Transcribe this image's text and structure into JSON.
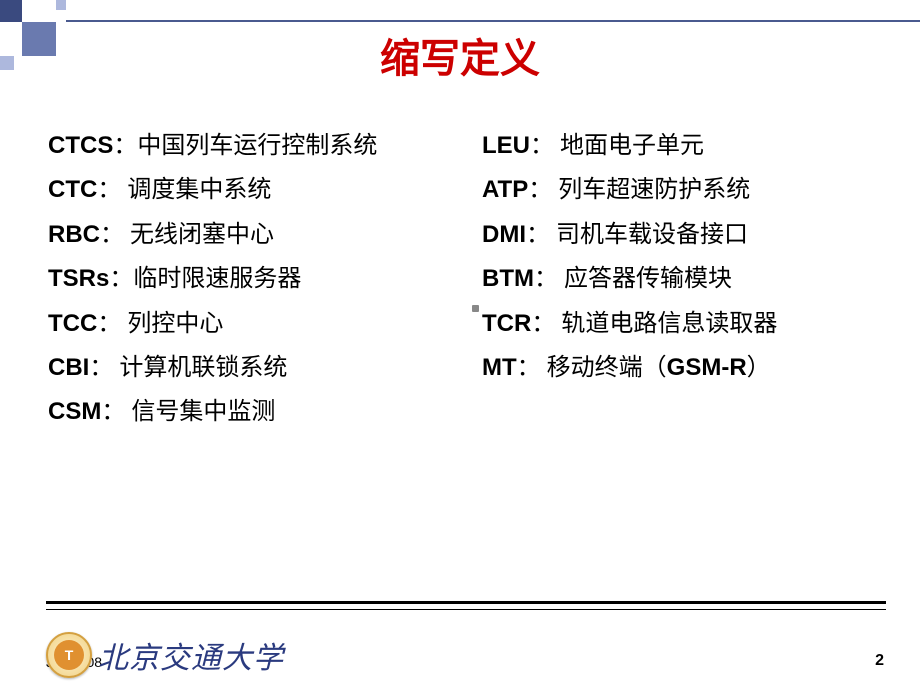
{
  "title": {
    "text": "缩写定义",
    "color": "#cc0000"
  },
  "leftColumn": [
    {
      "abbr": "CTCS",
      "sep": "：",
      "def": "中国列车运行控制系统"
    },
    {
      "abbr": "CTC",
      "sep": "：  ",
      "def": "调度集中系统"
    },
    {
      "abbr": "RBC",
      "sep": "：  ",
      "def": "无线闭塞中心"
    },
    {
      "abbr": "TSRs",
      "sep": "：",
      "def": "临时限速服务器"
    },
    {
      "abbr": "TCC",
      "sep": "：  ",
      "def": "列控中心"
    },
    {
      "abbr": "CBI",
      "sep": "：  ",
      "def": "计算机联锁系统"
    },
    {
      "abbr": "CSM",
      "sep": "：  ",
      "def": "信号集中监测"
    }
  ],
  "rightColumn": [
    {
      "abbr": "LEU",
      "sep": "：  ",
      "def": "地面电子单元"
    },
    {
      "abbr": "ATP",
      "sep": "：  ",
      "def": "列车超速防护系统"
    },
    {
      "abbr": "DMI",
      "sep": "：  ",
      "def": "司机车载设备接口"
    },
    {
      "abbr": "BTM",
      "sep": "：  ",
      "def": "应答器传输模块"
    },
    {
      "abbr": "TCR",
      "sep": "：  ",
      "def": "轨道电路信息读取器"
    },
    {
      "abbr": "MT",
      "sep": "：   ",
      "def": "移动终端（",
      "latin": "GSM-R",
      "def2": "）"
    }
  ],
  "footer": {
    "date": "Juli 2008",
    "university": "北京交通大学",
    "logoText": "T",
    "pageNumber": "2"
  },
  "colors": {
    "title": "#cc0000",
    "corner": "#4a5a8f",
    "text": "#000000",
    "uni": "#2a3a7f"
  }
}
